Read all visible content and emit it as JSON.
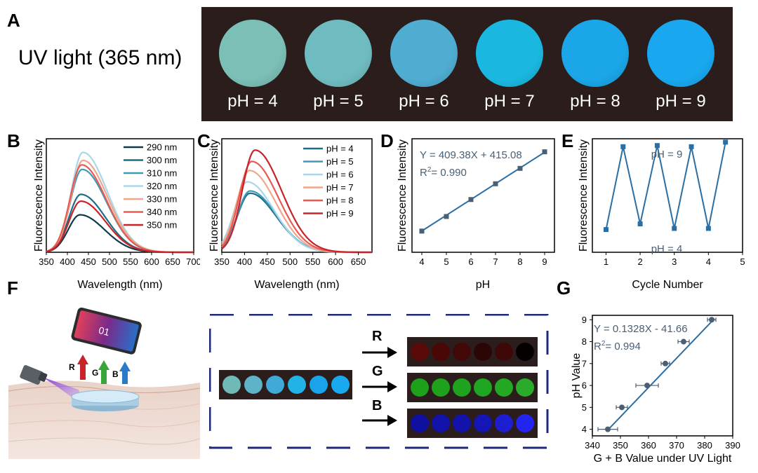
{
  "figure": {
    "panel_labels": [
      "A",
      "B",
      "C",
      "D",
      "E",
      "F",
      "G"
    ],
    "panel_a": {
      "title": "UV light (365 nm)",
      "samples": [
        {
          "label": "pH = 4",
          "color": "#7bbfb6"
        },
        {
          "label": "pH = 5",
          "color": "#6fbcc0"
        },
        {
          "label": "pH = 6",
          "color": "#4fadd2"
        },
        {
          "label": "pH = 7",
          "color": "#1ab8e0"
        },
        {
          "label": "pH = 8",
          "color": "#1aa6e8"
        },
        {
          "label": "pH = 9",
          "color": "#19a8ef"
        }
      ]
    },
    "panel_f": {
      "rgb_labels": [
        "R",
        "G",
        "B"
      ],
      "phone_text": "01",
      "channel_colors": {
        "R": [
          "#5a0a08",
          "#4a0706",
          "#420808",
          "#2c0606",
          "#3e0808",
          "#050000"
        ],
        "G": [
          "#1da01a",
          "#1ea21c",
          "#1fa21e",
          "#1fa51f",
          "#23a823",
          "#2bab2b"
        ],
        "B": [
          "#1010a0",
          "#1212a8",
          "#1313ac",
          "#1616b6",
          "#1d1dd2",
          "#2424f0"
        ],
        "input": [
          "#6fbab7",
          "#5fb3c8",
          "#3fa9d7",
          "#20b3e3",
          "#1aa3ea",
          "#19a9ef"
        ]
      }
    }
  },
  "chart_data": [
    {
      "panel": "B",
      "type": "line",
      "xlabel": "Wavelength (nm)",
      "ylabel": "Fluorescence Intensity",
      "xlim": [
        350,
        700
      ],
      "xticks": [
        "350",
        "400",
        "450",
        "500",
        "550",
        "600",
        "650",
        "700"
      ],
      "series": [
        {
          "name": "290 nm",
          "color": "#0e3a4a",
          "peak_x": 430,
          "peak": 0.33
        },
        {
          "name": "300 nm",
          "color": "#1a6e86",
          "peak_x": 432,
          "peak": 0.51
        },
        {
          "name": "310 nm",
          "color": "#3d9bb8",
          "peak_x": 435,
          "peak": 0.73
        },
        {
          "name": "320 nm",
          "color": "#a8d6ea",
          "peak_x": 437,
          "peak": 0.88
        },
        {
          "name": "330 nm",
          "color": "#f2a58a",
          "peak_x": 437,
          "peak": 0.81
        },
        {
          "name": "340 nm",
          "color": "#e85a4f",
          "peak_x": 434,
          "peak": 0.77
        },
        {
          "name": "350 nm",
          "color": "#c8232a",
          "peak_x": 432,
          "peak": 0.45
        }
      ]
    },
    {
      "panel": "C",
      "type": "line",
      "xlabel": "Wavelength (nm)",
      "ylabel": "Fluorescence Intensity",
      "xlim": [
        350,
        680
      ],
      "xticks": [
        "350",
        "400",
        "450",
        "500",
        "550",
        "600",
        "650"
      ],
      "series": [
        {
          "name": "pH = 4",
          "color": "#1a6e86",
          "peak_x": 412,
          "peak": 0.52
        },
        {
          "name": "pH = 5",
          "color": "#3d9bb8",
          "peak_x": 412,
          "peak": 0.54
        },
        {
          "name": "pH = 6",
          "color": "#a8d6ea",
          "peak_x": 406,
          "peak": 0.62
        },
        {
          "name": "pH = 7",
          "color": "#f2a58a",
          "peak_x": 411,
          "peak": 0.72
        },
        {
          "name": "pH = 8",
          "color": "#e85a4f",
          "peak_x": 416,
          "peak": 0.8
        },
        {
          "name": "pH = 9",
          "color": "#c8232a",
          "peak_x": 423,
          "peak": 0.9
        }
      ]
    },
    {
      "panel": "D",
      "type": "scatter",
      "xlabel": "pH",
      "ylabel": "Fluorescence Intensity",
      "equation": "Y = 409.38X + 415.08",
      "r2_value": "= 0.990",
      "x": [
        4,
        5,
        6,
        7,
        8,
        9
      ],
      "y": [
        2050,
        2430,
        2870,
        3280,
        3680,
        4110
      ],
      "xlim": [
        3.6,
        9.4
      ],
      "ylim": [
        1500,
        4450
      ],
      "xticks": [
        "4",
        "5",
        "6",
        "7",
        "8",
        "9"
      ]
    },
    {
      "panel": "E",
      "type": "line",
      "xlabel": "Cycle Number",
      "ylabel": "Fluorescence Intensity",
      "annot_high": "pH = 9",
      "annot_low": "pH = 4",
      "x": [
        1,
        1.5,
        2,
        2.5,
        3,
        3.5,
        4,
        4.5
      ],
      "y": [
        0.2,
        0.93,
        0.25,
        0.94,
        0.21,
        0.93,
        0.21,
        0.97
      ],
      "xlim": [
        0.6,
        5
      ],
      "xticks": [
        "1",
        "2",
        "3",
        "4",
        "5"
      ]
    },
    {
      "panel": "G",
      "type": "scatter",
      "xlabel": "G + B Value under UV Light",
      "ylabel": "pH Value",
      "equation": "Y = 0.1328X - 41.66",
      "r2_value": "= 0.994",
      "x": [
        345.5,
        350.5,
        359.5,
        366,
        372.5,
        382.5
      ],
      "y": [
        4,
        5,
        6,
        7,
        8,
        9
      ],
      "xerr": [
        3.5,
        2,
        4,
        1.5,
        2,
        1.5
      ],
      "xlim": [
        340,
        390
      ],
      "ylim": [
        3.7,
        9.2
      ],
      "xticks": [
        "340",
        "350",
        "360",
        "370",
        "380",
        "390"
      ],
      "yticks": [
        "4",
        "5",
        "6",
        "7",
        "8",
        "9"
      ]
    }
  ]
}
